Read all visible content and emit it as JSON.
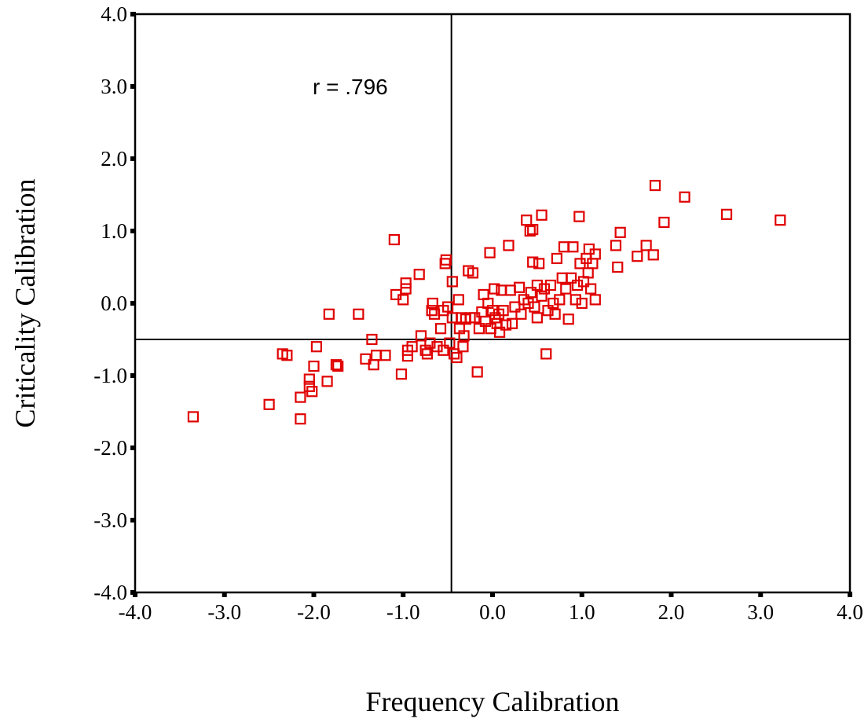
{
  "chart_data": {
    "type": "scatter",
    "xlabel": "Frequency Calibration",
    "ylabel": "Criticality Calibration",
    "xlim": [
      -4.0,
      4.0
    ],
    "ylim": [
      -4.0,
      4.0
    ],
    "x_ticks": [
      "-4.0",
      "-3.0",
      "-2.0",
      "-1.0",
      "0.0",
      "1.0",
      "2.0",
      "3.0",
      "4.0"
    ],
    "y_ticks": [
      "4.0",
      "3.0",
      "2.0",
      "1.0",
      "0.0",
      "-1.0",
      "-2.0",
      "-3.0",
      "-4.0"
    ],
    "annotation": "r = .796",
    "reference_lines": {
      "x": -0.46,
      "y": -0.5
    },
    "grid": false,
    "marker": "open-square",
    "color": "#e00000",
    "points": [
      [
        -3.35,
        -1.57
      ],
      [
        -2.5,
        -1.4
      ],
      [
        -2.15,
        -1.6
      ],
      [
        -2.15,
        -1.3
      ],
      [
        -2.05,
        -1.05
      ],
      [
        -2.05,
        -1.15
      ],
      [
        -2.02,
        -1.22
      ],
      [
        -2.0,
        -0.87
      ],
      [
        -1.97,
        -0.6
      ],
      [
        -1.85,
        -1.08
      ],
      [
        -1.83,
        -0.15
      ],
      [
        -1.75,
        -0.85
      ],
      [
        -1.73,
        -0.87
      ],
      [
        -1.5,
        -0.15
      ],
      [
        -1.42,
        -0.77
      ],
      [
        -1.35,
        -0.5
      ],
      [
        -1.33,
        -0.85
      ],
      [
        -1.3,
        -0.72
      ],
      [
        -1.2,
        -0.72
      ],
      [
        -2.35,
        -0.7
      ],
      [
        -2.3,
        -0.72
      ],
      [
        -1.1,
        0.88
      ],
      [
        -1.08,
        0.12
      ],
      [
        -1.02,
        -0.98
      ],
      [
        -1.0,
        0.05
      ],
      [
        -0.97,
        0.28
      ],
      [
        -0.97,
        0.2
      ],
      [
        -0.95,
        -0.65
      ],
      [
        -0.95,
        -0.73
      ],
      [
        -0.9,
        -0.6
      ],
      [
        -0.82,
        0.4
      ],
      [
        -0.8,
        -0.45
      ],
      [
        -0.75,
        -0.65
      ],
      [
        -0.73,
        -0.7
      ],
      [
        -0.7,
        -0.55
      ],
      [
        -0.68,
        -0.1
      ],
      [
        -0.67,
        0.0
      ],
      [
        -0.65,
        -0.15
      ],
      [
        -0.62,
        -0.6
      ],
      [
        -0.58,
        -0.35
      ],
      [
        -0.55,
        -0.65
      ],
      [
        -0.55,
        -0.1
      ],
      [
        -0.53,
        0.55
      ],
      [
        -0.52,
        0.6
      ],
      [
        -0.5,
        -0.05
      ],
      [
        -0.48,
        -0.55
      ],
      [
        -0.45,
        0.3
      ],
      [
        -0.45,
        -0.2
      ],
      [
        -0.43,
        -0.7
      ],
      [
        -0.4,
        -0.75
      ],
      [
        -0.38,
        0.05
      ],
      [
        -0.37,
        -0.35
      ],
      [
        -0.35,
        -0.2
      ],
      [
        -0.33,
        -0.6
      ],
      [
        -0.32,
        -0.45
      ],
      [
        -0.3,
        -0.22
      ],
      [
        -0.27,
        0.45
      ],
      [
        -0.25,
        -0.2
      ],
      [
        -0.22,
        0.42
      ],
      [
        -0.2,
        -0.2
      ],
      [
        -0.17,
        -0.95
      ],
      [
        -0.15,
        -0.35
      ],
      [
        -0.12,
        -0.12
      ],
      [
        -0.1,
        0.12
      ],
      [
        -0.08,
        -0.25
      ],
      [
        -0.05,
        0.0
      ],
      [
        -0.03,
        0.7
      ],
      [
        -0.02,
        -0.35
      ],
      [
        0.0,
        -0.1
      ],
      [
        0.02,
        0.2
      ],
      [
        0.03,
        -0.2
      ],
      [
        0.05,
        -0.28
      ],
      [
        0.07,
        -0.15
      ],
      [
        0.08,
        -0.4
      ],
      [
        0.1,
        0.18
      ],
      [
        0.12,
        -0.1
      ],
      [
        0.15,
        -0.3
      ],
      [
        0.18,
        0.8
      ],
      [
        0.2,
        0.18
      ],
      [
        0.22,
        -0.28
      ],
      [
        0.25,
        -0.05
      ],
      [
        0.3,
        0.22
      ],
      [
        0.32,
        -0.15
      ],
      [
        0.35,
        0.05
      ],
      [
        0.38,
        1.15
      ],
      [
        0.4,
        0.0
      ],
      [
        0.42,
        1.0
      ],
      [
        0.43,
        0.15
      ],
      [
        0.45,
        0.57
      ],
      [
        0.45,
        1.02
      ],
      [
        0.47,
        -0.05
      ],
      [
        0.5,
        0.25
      ],
      [
        0.5,
        -0.2
      ],
      [
        0.52,
        0.55
      ],
      [
        0.55,
        1.22
      ],
      [
        0.55,
        0.1
      ],
      [
        0.58,
        0.2
      ],
      [
        0.6,
        -0.7
      ],
      [
        0.62,
        -0.1
      ],
      [
        0.65,
        0.25
      ],
      [
        0.68,
        0.0
      ],
      [
        0.7,
        -0.15
      ],
      [
        0.72,
        0.62
      ],
      [
        0.75,
        0.05
      ],
      [
        0.78,
        0.35
      ],
      [
        0.8,
        0.78
      ],
      [
        0.82,
        0.2
      ],
      [
        0.85,
        -0.22
      ],
      [
        0.88,
        0.35
      ],
      [
        0.9,
        0.78
      ],
      [
        0.93,
        0.05
      ],
      [
        0.95,
        0.25
      ],
      [
        0.97,
        1.2
      ],
      [
        0.98,
        0.55
      ],
      [
        1.0,
        0.0
      ],
      [
        1.02,
        0.3
      ],
      [
        1.05,
        0.62
      ],
      [
        1.07,
        0.42
      ],
      [
        1.08,
        0.75
      ],
      [
        1.1,
        0.2
      ],
      [
        1.12,
        0.55
      ],
      [
        1.15,
        0.05
      ],
      [
        1.15,
        0.68
      ],
      [
        1.38,
        0.8
      ],
      [
        1.4,
        0.5
      ],
      [
        1.43,
        0.98
      ],
      [
        1.62,
        0.65
      ],
      [
        1.72,
        0.8
      ],
      [
        1.8,
        0.67
      ],
      [
        1.82,
        1.63
      ],
      [
        1.92,
        1.12
      ],
      [
        2.15,
        1.47
      ],
      [
        2.62,
        1.23
      ],
      [
        3.22,
        1.15
      ]
    ]
  }
}
